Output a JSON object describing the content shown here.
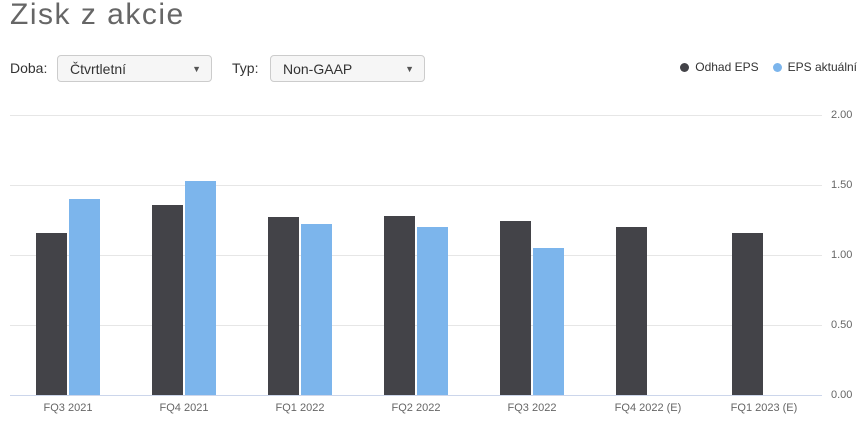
{
  "header": {
    "title": "Zisk z akcie"
  },
  "controls": {
    "period_label": "Doba:",
    "period_value": "Čtvrtletní",
    "type_label": "Typ:",
    "type_value": "Non-GAAP",
    "chevron_glyph": "▼"
  },
  "colors": {
    "estimate": "#434348",
    "actual": "#7cb5ec",
    "gridline": "#e6e6e6",
    "axis_line": "#ccd6eb",
    "axis_text": "#666666",
    "title_text": "#666666"
  },
  "chart_data": {
    "type": "bar",
    "title": "Zisk z akcie",
    "categories": [
      "FQ3 2021",
      "FQ4 2021",
      "FQ1 2022",
      "FQ2 2022",
      "FQ3 2022",
      "FQ4 2022 (E)",
      "FQ1 2023 (E)"
    ],
    "series": [
      {
        "name": "Odhad EPS",
        "color": "#434348",
        "values": [
          1.16,
          1.36,
          1.27,
          1.28,
          1.24,
          1.2,
          1.16
        ]
      },
      {
        "name": "EPS aktuální",
        "color": "#7cb5ec",
        "values": [
          1.4,
          1.53,
          1.22,
          1.2,
          1.05,
          null,
          null
        ]
      }
    ],
    "ylim": [
      0,
      2
    ],
    "ytick_labels": [
      "2.00",
      "1.50",
      "1.00",
      "0.50",
      "0.00"
    ],
    "grid": true,
    "legend_position": "top-right"
  }
}
